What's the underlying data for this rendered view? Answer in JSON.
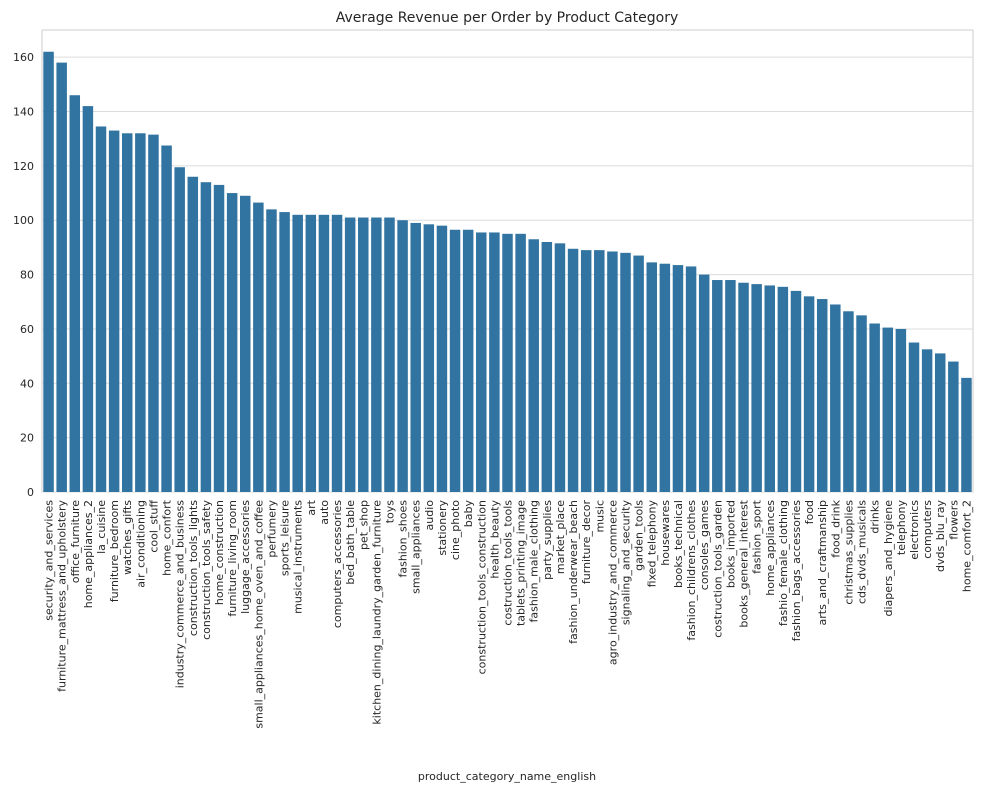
{
  "chart_data": {
    "type": "bar",
    "title": "Average Revenue per Order by Product Category",
    "x_label": "product_category_name_english",
    "categories": [
      "security_and_services",
      "furniture_mattress_and_upholstery",
      "office_furniture",
      "home_appliances_2",
      "la_cuisine",
      "furniture_bedroom",
      "watches_gifts",
      "air_conditioning",
      "cool_stuff",
      "home_confort",
      "industry_commerce_and_business",
      "construction_tools_lights",
      "construction_tools_safety",
      "home_construction",
      "furniture_living_room",
      "luggage_accessories",
      "small_appliances_home_oven_and_coffee",
      "perfumery",
      "sports_leisure",
      "musical_instruments",
      "art",
      "auto",
      "computers_accessories",
      "bed_bath_table",
      "pet_shop",
      "kitchen_dining_laundry_garden_furniture",
      "toys",
      "fashion_shoes",
      "small_appliances",
      "audio",
      "stationery",
      "cine_photo",
      "baby",
      "construction_tools_construction",
      "health_beauty",
      "costruction_tools_tools",
      "tablets_printing_image",
      "fashion_male_clothing",
      "party_supplies",
      "market_place",
      "fashion_underwear_beach",
      "furniture_decor",
      "music",
      "agro_industry_and_commerce",
      "signaling_and_security",
      "garden_tools",
      "fixed_telephony",
      "housewares",
      "books_technical",
      "fashion_childrens_clothes",
      "consoles_games",
      "costruction_tools_garden",
      "books_imported",
      "books_general_interest",
      "fashion_sport",
      "home_appliances",
      "fashio_female_clothing",
      "fashion_bags_accessories",
      "food",
      "arts_and_craftmanship",
      "food_drink",
      "christmas_supplies",
      "cds_dvds_musicals",
      "drinks",
      "diapers_and_hygiene",
      "telephony",
      "electronics",
      "computers",
      "dvds_blu_ray",
      "flowers",
      "home_comfort_2"
    ],
    "values": [
      162,
      158,
      146,
      142,
      134.5,
      133,
      132,
      132,
      131.5,
      127.5,
      119.5,
      116,
      114,
      113,
      110,
      109,
      106.5,
      104,
      103,
      102,
      102,
      102,
      102,
      101,
      101,
      101,
      101,
      100,
      99,
      98.5,
      98,
      96.5,
      96.5,
      95.5,
      95.5,
      95,
      95,
      93,
      92,
      91.5,
      89.5,
      89,
      89,
      88.5,
      88,
      87,
      84.5,
      84,
      83.5,
      83,
      80,
      78,
      78,
      77,
      76.5,
      76,
      75.5,
      74,
      72,
      71,
      69,
      66.5,
      65,
      62,
      60.5,
      60,
      55,
      52.5,
      51,
      48,
      42
    ],
    "color": "#3274a1",
    "ylim": [
      0,
      170
    ],
    "yticks": [
      0,
      20,
      40,
      60,
      80,
      100,
      120,
      140,
      160
    ],
    "grid": true
  }
}
